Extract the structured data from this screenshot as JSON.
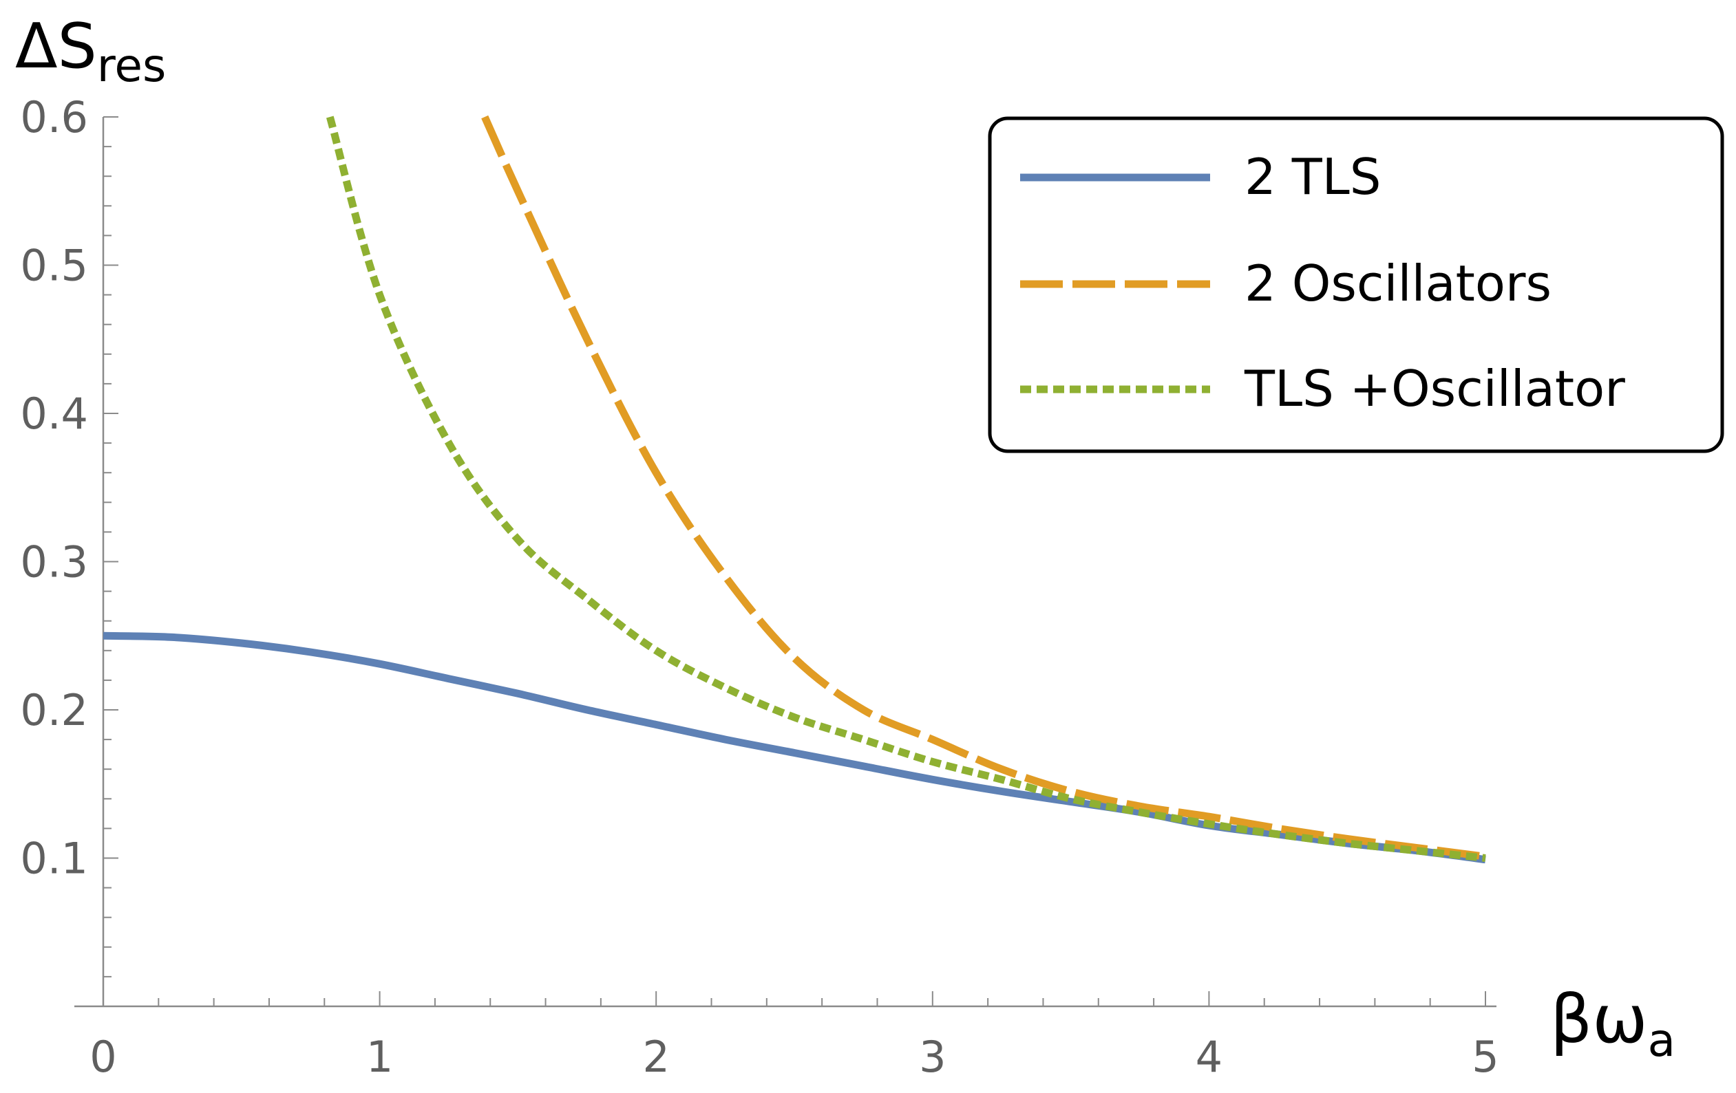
{
  "chart_data": {
    "type": "line",
    "ylabel": {
      "main": "ΔS",
      "sub": "res"
    },
    "xlabel": {
      "main": "βω",
      "sub": "a"
    },
    "xlim": [
      0,
      5
    ],
    "ylim": [
      0,
      0.6
    ],
    "x_ticks": [
      "0",
      "1",
      "2",
      "3",
      "4",
      "5"
    ],
    "y_ticks": [
      "0.1",
      "0.2",
      "0.3",
      "0.4",
      "0.5",
      "0.6"
    ],
    "grid": false,
    "legend_position": "top-right",
    "series": [
      {
        "name": "2 TLS",
        "color": "#5e81b5",
        "dash": "solid",
        "x": [
          0,
          0.25,
          0.5,
          0.75,
          1,
          1.25,
          1.5,
          1.75,
          2,
          2.25,
          2.5,
          2.75,
          3,
          3.25,
          3.5,
          3.75,
          4,
          4.25,
          4.5,
          4.75,
          5
        ],
        "y": [
          0.25,
          0.249,
          0.245,
          0.239,
          0.231,
          0.221,
          0.211,
          0.2,
          0.19,
          0.18,
          0.171,
          0.162,
          0.153,
          0.145,
          0.138,
          0.131,
          0.122,
          0.116,
          0.11,
          0.105,
          0.099
        ]
      },
      {
        "name": "2 Oscillators",
        "color": "#e19c24",
        "dash": "long-dash",
        "x": [
          1.38,
          1.5,
          1.75,
          2,
          2.25,
          2.5,
          2.75,
          3,
          3.25,
          3.5,
          3.75,
          4,
          4.25,
          4.5,
          4.75,
          5
        ],
        "y": [
          0.6,
          0.55,
          0.45,
          0.36,
          0.29,
          0.235,
          0.2,
          0.18,
          0.16,
          0.145,
          0.135,
          0.128,
          0.12,
          0.113,
          0.107,
          0.101
        ]
      },
      {
        "name": "TLS +Oscillator",
        "color": "#8fb032",
        "dash": "dotted",
        "x": [
          0.82,
          1,
          1.25,
          1.5,
          1.75,
          2,
          2.25,
          2.5,
          2.75,
          3,
          3.25,
          3.5,
          3.75,
          4,
          4.25,
          4.5,
          4.75,
          5
        ],
        "y": [
          0.6,
          0.48,
          0.38,
          0.315,
          0.275,
          0.24,
          0.215,
          0.195,
          0.18,
          0.165,
          0.153,
          0.14,
          0.131,
          0.123,
          0.116,
          0.11,
          0.105,
          0.1
        ]
      }
    ]
  }
}
